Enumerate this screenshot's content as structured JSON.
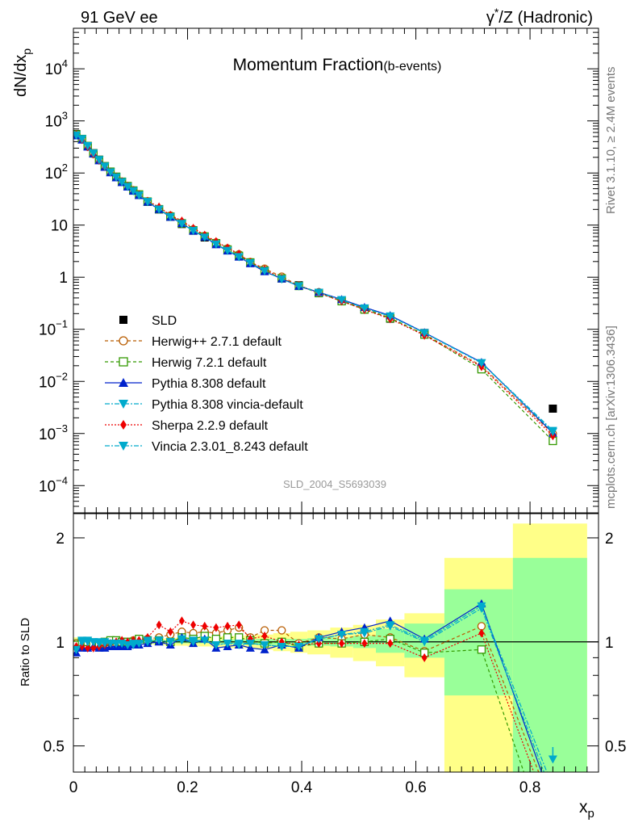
{
  "header": {
    "left": "91 GeV ee",
    "right_base": "γ",
    "right_sup": "*",
    "right_rest": "/Z (Hadronic)"
  },
  "side_labels": {
    "top": "Rivet 3.1.10, ≥ 2.4M events",
    "bottom": "mcplots.cern.ch [arXiv:1306.3436]"
  },
  "chart_data": [
    {
      "type": "line",
      "title_main": "Momentum Fraction",
      "title_sub": "(b-events)",
      "watermark": "SLD_2004_S5693039",
      "ylabel_base": "dN/dx",
      "ylabel_sub": "p",
      "yscale": "log",
      "ylim": [
        3e-05,
        60000
      ],
      "xlim": [
        0,
        0.92
      ],
      "yticks": [
        {
          "v": 10000,
          "m": "10",
          "e": "4"
        },
        {
          "v": 1000,
          "m": "10",
          "e": "3"
        },
        {
          "v": 100,
          "m": "10",
          "e": "2"
        },
        {
          "v": 10,
          "m": "10",
          "e": ""
        },
        {
          "v": 1,
          "m": "1",
          "e": ""
        },
        {
          "v": 0.1,
          "m": "10",
          "e": "−1"
        },
        {
          "v": 0.01,
          "m": "10",
          "e": "−2"
        },
        {
          "v": 0.001,
          "m": "10",
          "e": "−3"
        },
        {
          "v": 0.0001,
          "m": "10",
          "e": "−4"
        }
      ],
      "x": [
        0.005,
        0.015,
        0.025,
        0.035,
        0.045,
        0.055,
        0.065,
        0.075,
        0.085,
        0.095,
        0.105,
        0.115,
        0.13,
        0.15,
        0.17,
        0.19,
        0.21,
        0.23,
        0.25,
        0.27,
        0.29,
        0.31,
        0.335,
        0.365,
        0.395,
        0.43,
        0.47,
        0.51,
        0.555,
        0.615,
        0.715,
        0.84
      ],
      "data_values": [
        560,
        450,
        330,
        240,
        180,
        135,
        105,
        84,
        68,
        56,
        46,
        38,
        28,
        20,
        14.5,
        10.5,
        7.8,
        5.8,
        4.4,
        3.3,
        2.5,
        1.9,
        1.35,
        0.95,
        0.7,
        0.5,
        0.35,
        0.24,
        0.16,
        0.085,
        0.018,
        0.003
      ],
      "series": [
        {
          "name": "SLD",
          "color": "#000000",
          "marker": "square-filled",
          "dash": "none"
        },
        {
          "name": "Herwig++ 2.7.1 default",
          "color": "#b85c00",
          "marker": "circle-open",
          "dash": "4,3",
          "ratio": [
            0.99,
            0.98,
            0.97,
            0.97,
            0.98,
            0.99,
            1.0,
            0.99,
            1.0,
            1.0,
            1.01,
            1.02,
            1.02,
            1.03,
            1.05,
            1.07,
            1.06,
            1.07,
            1.06,
            1.08,
            1.1,
            1.03,
            1.08,
            1.08,
            0.99,
            1.03,
            1.02,
            1.05,
            1.03,
            0.94,
            1.11,
            0.33
          ]
        },
        {
          "name": "Herwig 7.2.1 default",
          "color": "#339900",
          "marker": "square-open",
          "dash": "4,3",
          "ratio": [
            0.98,
            1.0,
            1.0,
            0.99,
            0.99,
            1.0,
            1.01,
            1.01,
            1.0,
            1.0,
            1.0,
            1.02,
            1.01,
            1.01,
            1.0,
            1.03,
            1.02,
            1.04,
            1.02,
            1.03,
            1.03,
            1.01,
            0.99,
            1.0,
            0.97,
            0.99,
            0.99,
            1.0,
            1.02,
            0.93,
            0.95,
            0.24
          ]
        },
        {
          "name": "Pythia 8.308 default",
          "color": "#0022cc",
          "marker": "triangle-up-filled",
          "dash": "none",
          "ratio": [
            0.93,
            0.96,
            0.96,
            0.97,
            0.96,
            0.96,
            0.97,
            0.97,
            0.97,
            0.97,
            0.98,
            0.98,
            0.99,
            1.0,
            0.98,
            1.03,
            0.99,
            1.02,
            0.96,
            0.97,
            0.98,
            0.96,
            0.95,
            0.98,
            0.96,
            1.03,
            1.07,
            1.1,
            1.15,
            1.02,
            1.29,
            0.34
          ]
        },
        {
          "name": "Pythia 8.308 vincia-default",
          "color": "#00aacc",
          "marker": "triangle-down-filled",
          "dash": "6,2,2,2",
          "ratio": [
            0.95,
            1.01,
            1.01,
            1.0,
            1.0,
            1.0,
            0.99,
            0.99,
            0.99,
            0.98,
            0.98,
            0.99,
            1.0,
            1.01,
            1.0,
            1.01,
            1.0,
            1.01,
            0.98,
            0.99,
            0.98,
            0.99,
            0.98,
            0.97,
            0.97,
            1.02,
            1.05,
            1.07,
            1.12,
            1.01,
            1.27,
            0.38
          ]
        },
        {
          "name": "Sherpa 2.2.9 default",
          "color": "#ee0000",
          "marker": "diamond-filled",
          "dash": "2,2",
          "ratio": [
            0.97,
            0.97,
            0.96,
            0.96,
            0.97,
            0.98,
            0.99,
            1.0,
            1.01,
            1.0,
            1.01,
            1.01,
            1.03,
            1.12,
            1.07,
            1.15,
            1.12,
            1.11,
            1.1,
            1.11,
            1.12,
            1.02,
            1.04,
            1.0,
            0.98,
            0.99,
            0.99,
            0.99,
            0.99,
            0.9,
            1.06,
            0.3
          ]
        },
        {
          "name": "Vincia 2.3.01_8.243 default",
          "color": "#00aacc",
          "marker": "triangle-down-filled",
          "dash": "6,2,2,2",
          "ratio": [
            0.95,
            1.0,
            1.0,
            1.0,
            0.99,
            0.99,
            0.99,
            0.99,
            0.99,
            0.98,
            0.99,
            0.99,
            1.01,
            1.01,
            1.0,
            1.02,
            1.01,
            1.01,
            0.98,
            0.99,
            0.99,
            0.99,
            0.98,
            0.97,
            0.97,
            1.02,
            1.05,
            1.06,
            1.11,
            1.0,
            1.25,
            0.36
          ]
        }
      ]
    },
    {
      "type": "line",
      "ylabel": "Ratio to SLD",
      "xlabel_base": "x",
      "xlabel_sub": "p",
      "yscale": "log",
      "ylim": [
        0.42,
        2.35
      ],
      "xlim": [
        0,
        0.92
      ],
      "yticks": [
        {
          "v": 0.5,
          "label": "0.5"
        },
        {
          "v": 1,
          "label": "1"
        },
        {
          "v": 2,
          "label": "2"
        }
      ],
      "xticks": [
        {
          "v": 0,
          "label": "0"
        },
        {
          "v": 0.2,
          "label": "0.2"
        },
        {
          "v": 0.4,
          "label": "0.4"
        },
        {
          "v": 0.6,
          "label": "0.6"
        },
        {
          "v": 0.8,
          "label": "0.8"
        }
      ],
      "bands": [
        {
          "x0": 0.0,
          "x1": 0.01,
          "y_lo": [
            0.97,
            0.98
          ],
          "y_hi": [
            1.03,
            1.02
          ]
        },
        {
          "x0": 0.01,
          "x1": 0.12,
          "y_lo": [
            0.985,
            0.99
          ],
          "y_hi": [
            1.015,
            1.01
          ]
        },
        {
          "x0": 0.12,
          "x1": 0.14,
          "y_lo": [
            0.985,
            0.99
          ],
          "y_hi": [
            1.015,
            1.01
          ]
        },
        {
          "x0": 0.14,
          "x1": 0.16,
          "y_lo": [
            0.98,
            0.99
          ],
          "y_hi": [
            1.02,
            1.01
          ]
        },
        {
          "x0": 0.16,
          "x1": 0.18,
          "y_lo": [
            0.975,
            0.99
          ],
          "y_hi": [
            1.025,
            1.01
          ]
        },
        {
          "x0": 0.18,
          "x1": 0.2,
          "y_lo": [
            0.975,
            0.99
          ],
          "y_hi": [
            1.03,
            1.01
          ]
        },
        {
          "x0": 0.2,
          "x1": 0.22,
          "y_lo": [
            0.97,
            0.99
          ],
          "y_hi": [
            1.03,
            1.01
          ]
        },
        {
          "x0": 0.22,
          "x1": 0.24,
          "y_lo": [
            0.97,
            0.99
          ],
          "y_hi": [
            1.035,
            1.01
          ]
        },
        {
          "x0": 0.24,
          "x1": 0.26,
          "y_lo": [
            0.965,
            0.99
          ],
          "y_hi": [
            1.035,
            1.01
          ]
        },
        {
          "x0": 0.26,
          "x1": 0.28,
          "y_lo": [
            0.96,
            0.985
          ],
          "y_hi": [
            1.04,
            1.015
          ]
        },
        {
          "x0": 0.28,
          "x1": 0.3,
          "y_lo": [
            0.96,
            0.985
          ],
          "y_hi": [
            1.04,
            1.015
          ]
        },
        {
          "x0": 0.3,
          "x1": 0.32,
          "y_lo": [
            0.96,
            0.985
          ],
          "y_hi": [
            1.045,
            1.015
          ]
        },
        {
          "x0": 0.32,
          "x1": 0.35,
          "y_lo": [
            0.95,
            0.98
          ],
          "y_hi": [
            1.05,
            1.02
          ]
        },
        {
          "x0": 0.35,
          "x1": 0.38,
          "y_lo": [
            0.94,
            0.98
          ],
          "y_hi": [
            1.06,
            1.02
          ]
        },
        {
          "x0": 0.38,
          "x1": 0.41,
          "y_lo": [
            0.93,
            0.98
          ],
          "y_hi": [
            1.07,
            1.02
          ]
        },
        {
          "x0": 0.41,
          "x1": 0.45,
          "y_lo": [
            0.92,
            0.975
          ],
          "y_hi": [
            1.08,
            1.025
          ]
        },
        {
          "x0": 0.45,
          "x1": 0.49,
          "y_lo": [
            0.9,
            0.97
          ],
          "y_hi": [
            1.1,
            1.03
          ]
        },
        {
          "x0": 0.49,
          "x1": 0.53,
          "y_lo": [
            0.88,
            0.96
          ],
          "y_hi": [
            1.12,
            1.04
          ]
        },
        {
          "x0": 0.53,
          "x1": 0.58,
          "y_lo": [
            0.85,
            0.93
          ],
          "y_hi": [
            1.16,
            1.09
          ]
        },
        {
          "x0": 0.58,
          "x1": 0.65,
          "y_lo": [
            0.79,
            0.9
          ],
          "y_hi": [
            1.21,
            1.13
          ]
        },
        {
          "x0": 0.65,
          "x1": 0.77,
          "y_lo": [
            0.42,
            0.7
          ],
          "y_hi": [
            1.75,
            1.42
          ]
        },
        {
          "x0": 0.77,
          "x1": 0.9,
          "y_lo": [
            0.42,
            0.42
          ],
          "y_hi": [
            2.2,
            1.75
          ]
        }
      ]
    }
  ]
}
